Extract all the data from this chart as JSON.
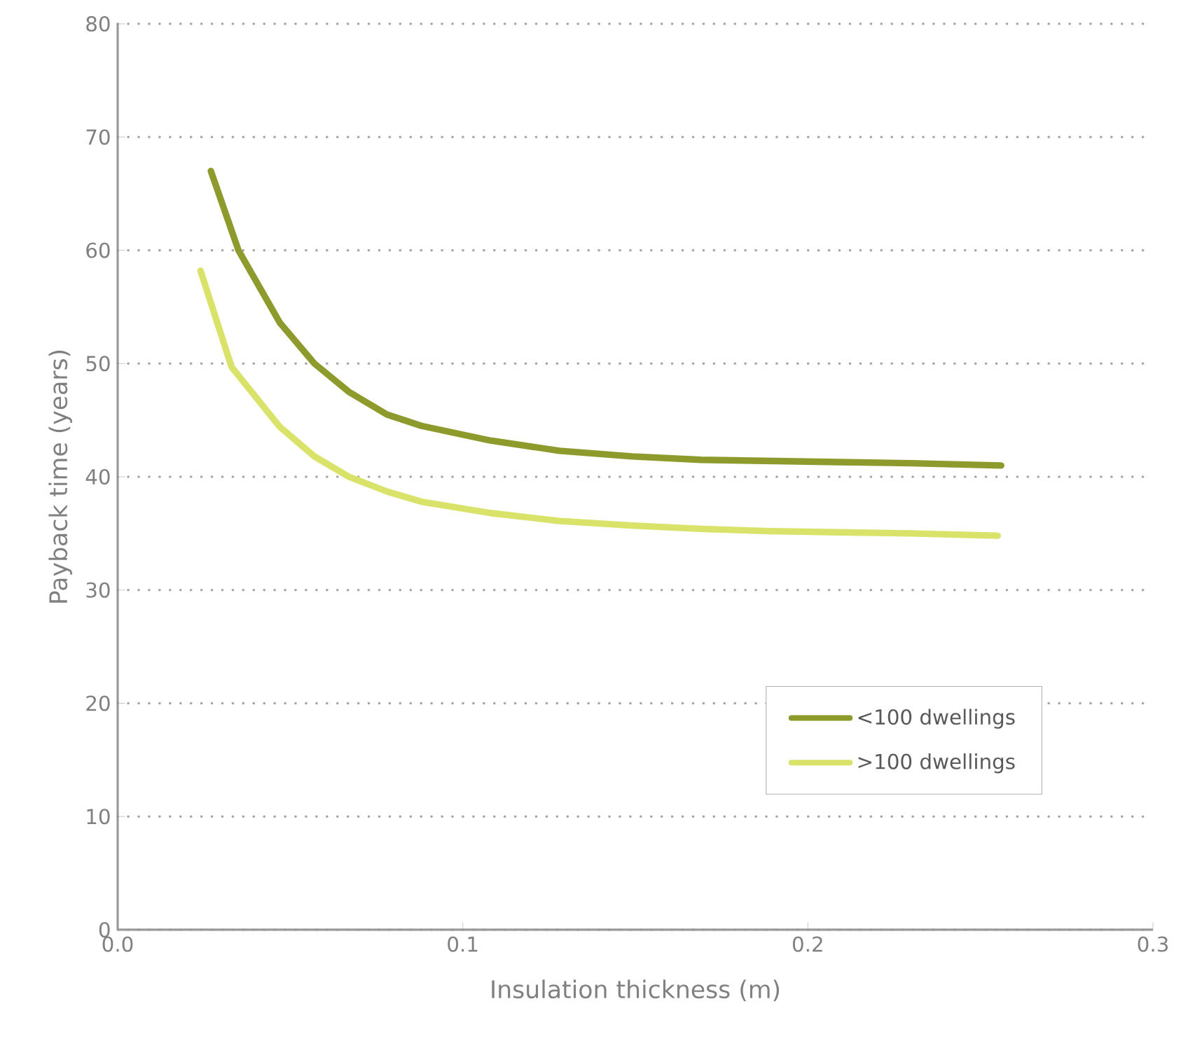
{
  "chart_data": {
    "type": "line",
    "xlabel": "Insulation thickness (m)",
    "ylabel": "Payback time (years)",
    "xlim": [
      0,
      0.3
    ],
    "ylim": [
      0,
      80
    ],
    "xticks": [
      {
        "value": 0,
        "label": "0.0"
      },
      0.1,
      0.2,
      0.3
    ],
    "yticks": [
      0,
      10,
      20,
      30,
      40,
      50,
      60,
      70,
      80
    ],
    "grid": "y",
    "legend": "bottom right",
    "marker": "none",
    "line_style": "solid",
    "series": [
      {
        "name": "<100 dwellings",
        "color": "#8e9b2c",
        "x": [
          0.027,
          0.035,
          0.047,
          0.057,
          0.067,
          0.078,
          0.088,
          0.108,
          0.128,
          0.149,
          0.169,
          0.189,
          0.209,
          0.23,
          0.256
        ],
        "values": [
          67.0,
          60.0,
          53.6,
          50.0,
          47.5,
          45.5,
          44.5,
          43.2,
          42.3,
          41.8,
          41.5,
          41.4,
          41.3,
          41.2,
          41.0
        ]
      },
      {
        "name": ">100 dwellings",
        "color": "#d9e36a",
        "x": [
          0.024,
          0.033,
          0.047,
          0.057,
          0.067,
          0.078,
          0.088,
          0.108,
          0.128,
          0.149,
          0.169,
          0.189,
          0.209,
          0.23,
          0.255
        ],
        "values": [
          58.2,
          49.7,
          44.4,
          41.8,
          40.0,
          38.7,
          37.8,
          36.8,
          36.1,
          35.7,
          35.4,
          35.2,
          35.1,
          35.0,
          34.8
        ]
      }
    ]
  }
}
